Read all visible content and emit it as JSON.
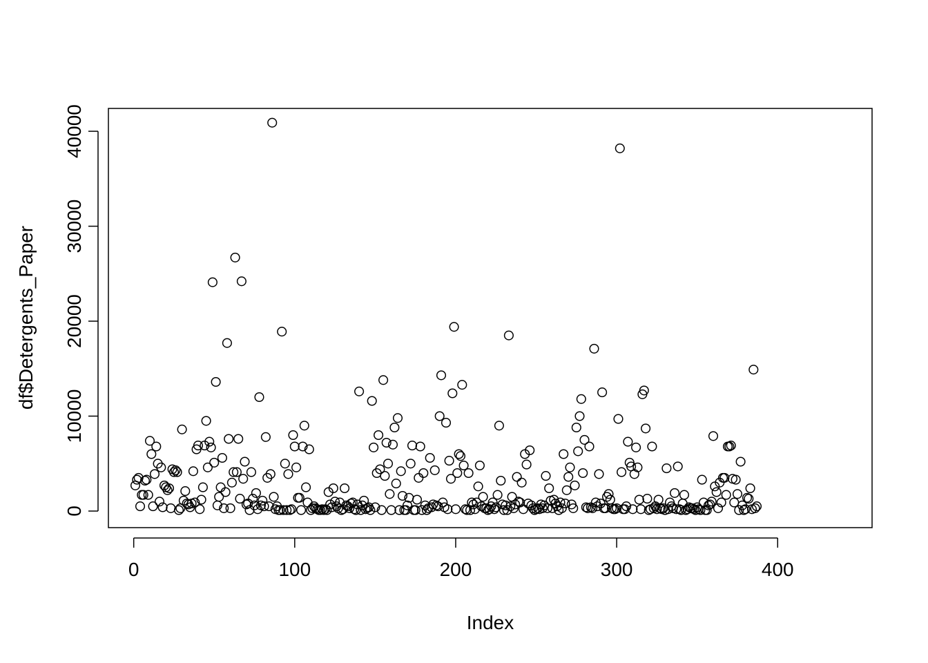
{
  "chart_data": {
    "type": "scatter",
    "title": "",
    "xlabel": "Index",
    "ylabel": "df$Detergents_Paper",
    "xlim": [
      0,
      440
    ],
    "ylim": [
      0,
      41000
    ],
    "x_ticks": [
      0,
      100,
      200,
      300,
      400
    ],
    "y_ticks": [
      0,
      10000,
      20000,
      30000,
      40000
    ],
    "x_tick_labels": [
      "0",
      "100",
      "200",
      "300",
      "400"
    ],
    "y_tick_labels": [
      "0",
      "10000",
      "20000",
      "30000",
      "40000"
    ],
    "grid": false,
    "legend": "none",
    "point_style": "open-circle",
    "color": "#000000",
    "series": [
      {
        "y": [
          2700,
          3300,
          3500,
          500,
          1700,
          1700,
          3200,
          3300,
          1700,
          7400,
          6000,
          500,
          3900,
          6800,
          5000,
          1000,
          4600,
          400,
          2700,
          2500,
          2200,
          2400,
          300,
          4400,
          4100,
          4300,
          4100,
          100,
          300,
          8600,
          1100,
          2100,
          800,
          700,
          400,
          800,
          4200,
          900,
          6500,
          6900,
          200,
          1200,
          2500,
          6900,
          9500,
          4600,
          7300,
          6700,
          24100,
          5100,
          13600,
          600,
          1500,
          2500,
          5600,
          300,
          2000,
          17700,
          7600,
          300,
          3000,
          4100,
          26700,
          4100,
          7600,
          1300,
          24200,
          3400,
          5200,
          700,
          800,
          100,
          4100,
          1300,
          600,
          1900,
          200,
          12000,
          600,
          1100,
          500,
          7800,
          3500,
          500,
          3900,
          40900,
          1500,
          200,
          500,
          100,
          100,
          18900,
          100,
          5000,
          100,
          3900,
          100,
          200,
          8000,
          6800,
          4600,
          1400,
          1400,
          100,
          6800,
          9000,
          2500,
          900,
          6500,
          100,
          300,
          500,
          300,
          200,
          100,
          100,
          200,
          100,
          200,
          100,
          2000,
          700,
          400,
          2400,
          1000,
          500,
          300,
          900,
          100,
          200,
          2400,
          600,
          500,
          300,
          800,
          900,
          200,
          100,
          700,
          12600,
          100,
          600,
          1100,
          200,
          300,
          400,
          100,
          11600,
          6700,
          400,
          4000,
          8000,
          4400,
          100,
          13800,
          3700,
          7200,
          5000,
          1800,
          100,
          7000,
          8800,
          2900,
          9800,
          100,
          4200,
          1600,
          100,
          100,
          600,
          1400,
          5000,
          6900,
          100,
          100,
          1200,
          3500,
          6800,
          100,
          4000,
          600,
          100,
          300,
          5600,
          400,
          700,
          4300,
          600,
          500,
          10000,
          14300,
          900,
          400,
          9300,
          200,
          5300,
          3400,
          12400,
          19400,
          200,
          4000,
          6000,
          5800,
          13300,
          4800,
          200,
          100,
          4000,
          100,
          900,
          700,
          200,
          900,
          2600,
          4800,
          500,
          1500,
          300,
          300,
          100,
          200,
          500,
          900,
          200,
          400,
          1700,
          9000,
          3200,
          700,
          100,
          600,
          100,
          18500,
          500,
          1500,
          300,
          700,
          3600,
          1000,
          900,
          3000,
          200,
          6000,
          4900,
          800,
          6400,
          600,
          300,
          100,
          200,
          300,
          200,
          700,
          300,
          600,
          3700,
          300,
          2400,
          1100,
          300,
          1200,
          800,
          500,
          100,
          900,
          300,
          6000,
          800,
          2200,
          3600,
          4600,
          700,
          300,
          2700,
          8800,
          6300,
          10000,
          11800,
          4000,
          7500,
          400,
          300,
          6800,
          400,
          300,
          17100,
          900,
          500,
          3900,
          800,
          12500,
          300,
          300,
          1500,
          1800,
          1200,
          300,
          200,
          200,
          300,
          9700,
          38200,
          4100,
          200,
          200,
          500,
          7300,
          5100,
          4700,
          200,
          3900,
          6700,
          4600,
          1200,
          200,
          12300,
          12700,
          8700,
          1300,
          100,
          200,
          6800,
          300,
          500,
          200,
          1200,
          300,
          200,
          300,
          100,
          4500,
          200,
          900,
          500,
          300,
          1900,
          200,
          4700,
          200,
          100,
          800,
          1700,
          100,
          200,
          400,
          300,
          300,
          200,
          100,
          400,
          200,
          100,
          3300,
          900,
          100,
          100,
          600,
          700,
          1000,
          7900,
          2600,
          2000,
          300,
          3000,
          900,
          3500,
          3500,
          1700,
          6800,
          6800,
          6900,
          3400,
          900,
          3300,
          1800,
          100,
          5200,
          600,
          100,
          200,
          1400,
          1300,
          2400,
          200,
          14900,
          300,
          500
        ]
      }
    ]
  }
}
